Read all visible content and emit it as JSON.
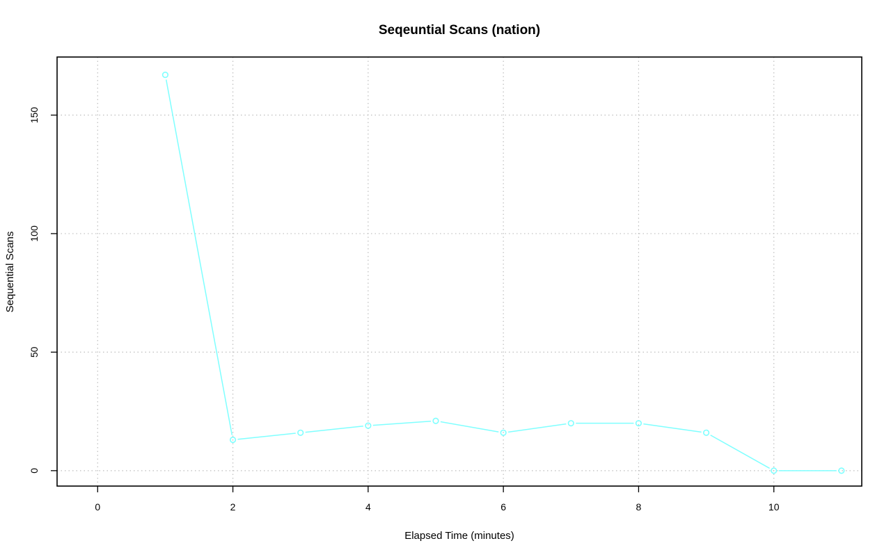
{
  "chart_data": {
    "type": "line",
    "title": "Seqeuntial Scans (nation)",
    "xlabel": "Elapsed Time (minutes)",
    "ylabel": "Sequential Scans",
    "xlim": [
      -0.6,
      11.3
    ],
    "ylim": [
      -6.5,
      174.5
    ],
    "xticks": [
      0,
      2,
      4,
      6,
      8,
      10
    ],
    "yticks": [
      0,
      50,
      100,
      150
    ],
    "xtick_labels": [
      "0",
      "2",
      "4",
      "6",
      "8",
      "10"
    ],
    "ytick_labels": [
      "0",
      "50",
      "100",
      "150"
    ],
    "grid": true,
    "series": [
      {
        "color": "#7fffff",
        "marker": "open-circle",
        "x": [
          1,
          2,
          3,
          4,
          5,
          6,
          7,
          8,
          9,
          10,
          11
        ],
        "y": [
          167,
          13,
          16,
          19,
          21,
          16,
          20,
          20,
          16,
          0,
          0
        ]
      }
    ]
  }
}
